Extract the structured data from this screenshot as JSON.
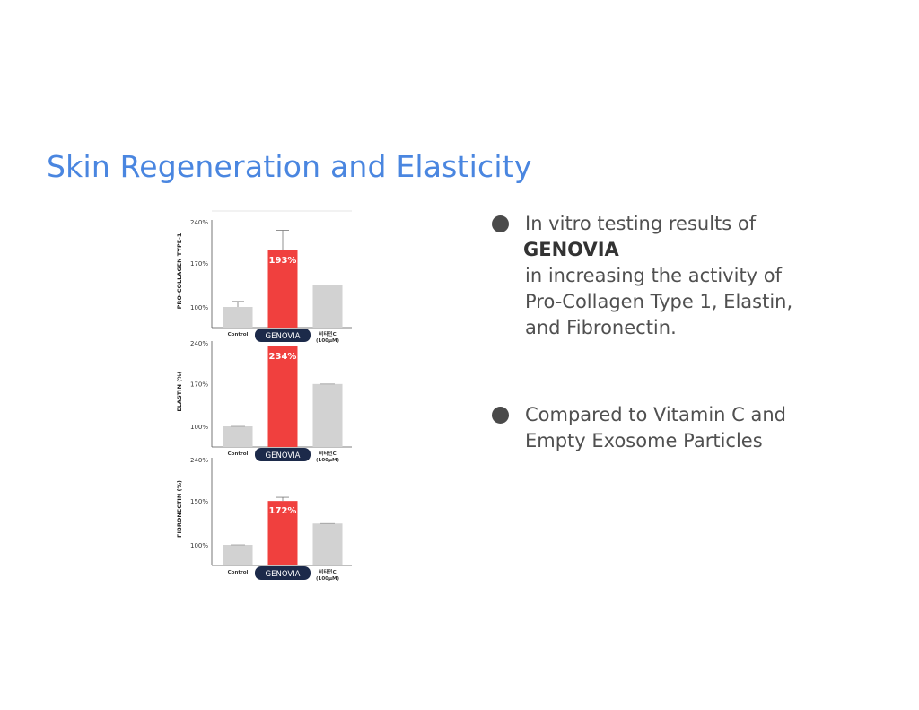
{
  "slide": {
    "title": "Skin Regeneration and Elasticity"
  },
  "bullets": [
    {
      "lines": [
        "In vitro testing results of",
        "GENOVIA",
        "in increasing the activity of",
        "Pro-Collagen Type 1, Elastin,",
        "and Fibronectin."
      ]
    },
    {
      "lines": [
        "Compared to Vitamin C and",
        "Empty Exosome Particles"
      ]
    }
  ],
  "colors": {
    "accent_title": "#4a86e0",
    "genovia_bar": "#f0403e",
    "reference_bar": "#d2d2d2",
    "pill": "#1c2a4a",
    "bullet": "#4a4a4a"
  },
  "chart_data": [
    {
      "type": "bar",
      "ylabel": "PRO-COLLAGEN TYPE-1",
      "yticks": [
        "240%",
        "170%",
        "100%"
      ],
      "ylim": [
        100,
        240
      ],
      "categories": [
        "Control",
        "GENOVIA",
        "비타민C\n(100μM)"
      ],
      "values": [
        100,
        193,
        136
      ],
      "errors": [
        9,
        33,
        0
      ],
      "data_labels": [
        "",
        "193%",
        ""
      ],
      "highlight": 1
    },
    {
      "type": "bar",
      "ylabel": "ELASTIN (%)",
      "yticks": [
        "240%",
        "170%",
        "100%"
      ],
      "ylim": [
        100,
        240
      ],
      "categories": [
        "Control",
        "GENOVIA",
        "비타민C\n(100μM)"
      ],
      "values": [
        100,
        234,
        171
      ],
      "errors": [
        0,
        0,
        0
      ],
      "data_labels": [
        "",
        "234%",
        ""
      ],
      "highlight": 1
    },
    {
      "type": "bar",
      "ylabel": "FIBRONECTIN (%)",
      "yticks": [
        "240%",
        "150%",
        "100%"
      ],
      "ylim": [
        100,
        240
      ],
      "categories": [
        "Control",
        "GENOVIA",
        "비타민C\n(100μM)"
      ],
      "values": [
        100,
        172,
        135
      ],
      "errors": [
        0,
        6,
        0
      ],
      "data_labels": [
        "",
        "172%",
        ""
      ],
      "highlight": 1
    }
  ]
}
